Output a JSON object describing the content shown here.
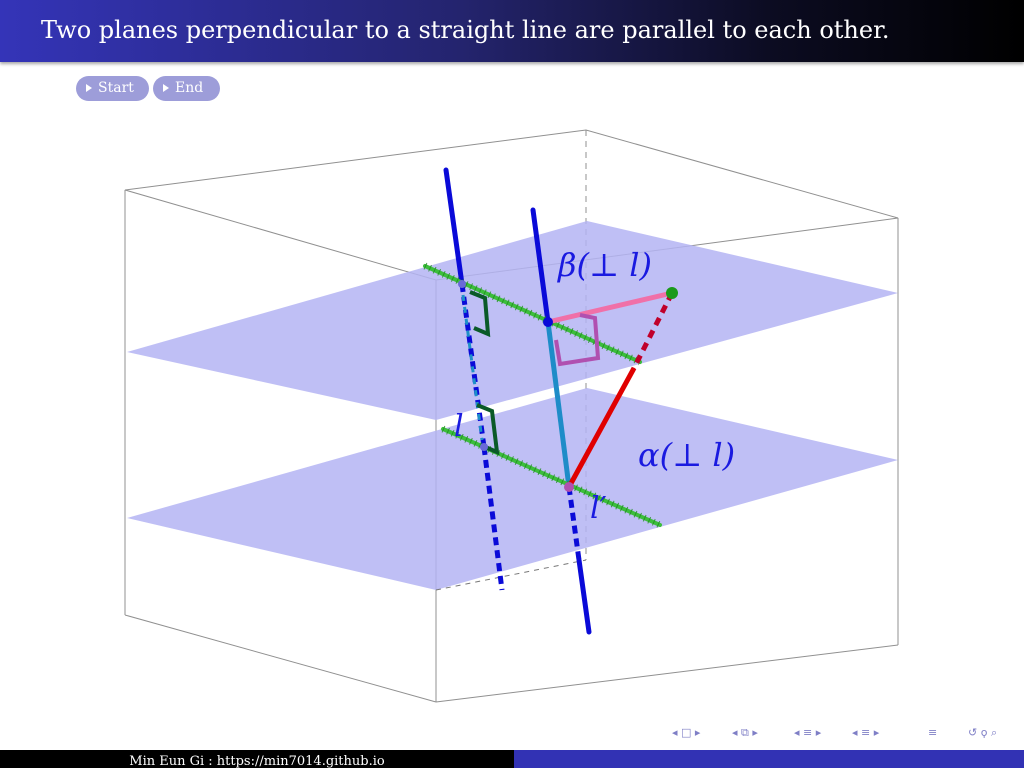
{
  "title": "Two planes perpendicular to a straight line are parallel to each other.",
  "buttons": {
    "start": "Start",
    "end": "End"
  },
  "figure": {
    "labels": {
      "beta": "β(⊥ l)",
      "alpha": "α(⊥ l)",
      "l": "l",
      "l_prime": "l′"
    },
    "colors": {
      "plane_fill": "#b4b4f3",
      "line_l": "#0a0ad8",
      "intersection_lines": "#3cbe3c",
      "red_segment": "#e00000",
      "pink_segment": "#f070a8",
      "box_edges": "#909090",
      "right_angle_green": "#0a5a28",
      "right_angle_magenta": "#b050b0"
    }
  },
  "nav": {
    "icons": [
      "frame-prev",
      "frame-next",
      "subsection-prev",
      "subsection-next",
      "section-prev",
      "section-next",
      "align",
      "zoom"
    ],
    "glyphs": [
      "◂ □ ▸",
      "◂ ⧉ ▸",
      "◂ ≡ ▸",
      "◂ ≡ ▸",
      "≡",
      "↺ ϙ ⌕"
    ]
  },
  "footer": {
    "left_text": "Min Eun Gi : https://min7014.github.io"
  }
}
